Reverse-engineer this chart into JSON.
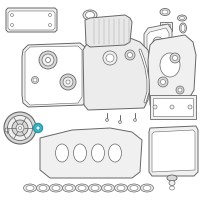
{
  "background_color": "#ffffff",
  "fig_width": 2.0,
  "fig_height": 2.0,
  "dpi": 100,
  "highlight_color": "#44bbcc",
  "line_color": "#999999",
  "dark_line": "#666666",
  "light_fill": "#f0f0f0",
  "mid_fill": "#d8d8d8",
  "stroke": "#777777"
}
